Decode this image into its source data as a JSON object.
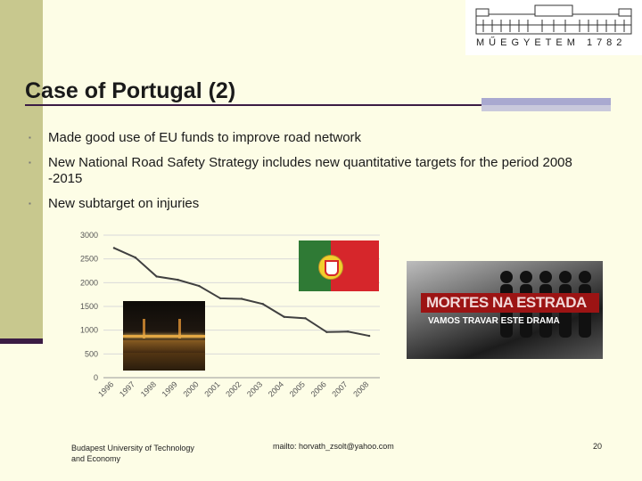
{
  "slide": {
    "title": "Case of Portugal (2)",
    "bullets": [
      "Made good use of EU funds to improve road network",
      "New National Road Safety Strategy includes new quantitative targets for the period 2008 -2015",
      "New subtarget on injuries"
    ]
  },
  "logo": {
    "text": "MŰEGYETEM 1782"
  },
  "campaign_image": {
    "headline": "MORTES NA ESTRADA",
    "subline": "VAMOS TRAVAR ESTE DRAMA"
  },
  "footer": {
    "left": "Budapest University of Technology and Economy",
    "middle": "mailto: horvath_zsolt@yahoo.com",
    "page_number": "20"
  },
  "colors": {
    "accent": "#3b1c44",
    "sidebar": "#c8c88e",
    "background": "#fdfde6",
    "line": "#404040"
  },
  "chart_data": {
    "type": "line",
    "x": [
      "1996",
      "1997",
      "1998",
      "1999",
      "2000",
      "2001",
      "2002",
      "2003",
      "2004",
      "2005",
      "2006",
      "2007",
      "2008"
    ],
    "series": [
      {
        "values": [
          2730,
          2530,
          2130,
          2060,
          1930,
          1670,
          1660,
          1550,
          1280,
          1250,
          960,
          970,
          880
        ]
      }
    ],
    "y_ticks": [
      "0",
      "500",
      "1000",
      "1500",
      "2000",
      "2500",
      "3000"
    ],
    "ylim": [
      0,
      3000
    ],
    "grid": true,
    "title": "",
    "xlabel": "",
    "ylabel": ""
  }
}
